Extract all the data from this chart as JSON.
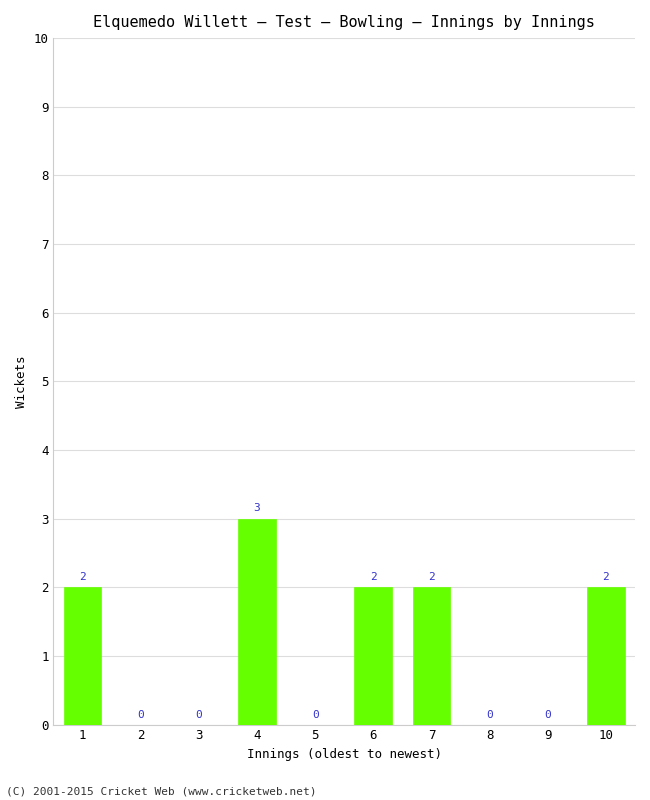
{
  "title": "Elquemedo Willett – Test – Bowling – Innings by Innings",
  "xlabel": "Innings (oldest to newest)",
  "ylabel": "Wickets",
  "categories": [
    "1",
    "2",
    "3",
    "4",
    "5",
    "6",
    "7",
    "8",
    "9",
    "10"
  ],
  "values": [
    2,
    0,
    0,
    3,
    0,
    2,
    2,
    0,
    0,
    2
  ],
  "bar_color": "#66ff00",
  "bar_edge_color": "#66ff00",
  "label_color": "#3333cc",
  "ylim": [
    0,
    10
  ],
  "yticks": [
    0,
    1,
    2,
    3,
    4,
    5,
    6,
    7,
    8,
    9,
    10
  ],
  "background_color": "#ffffff",
  "plot_bg_color": "#ffffff",
  "grid_color": "#dddddd",
  "footer": "(C) 2001-2015 Cricket Web (www.cricketweb.net)",
  "title_fontsize": 11,
  "axis_label_fontsize": 9,
  "tick_fontsize": 9,
  "bar_label_fontsize": 8
}
